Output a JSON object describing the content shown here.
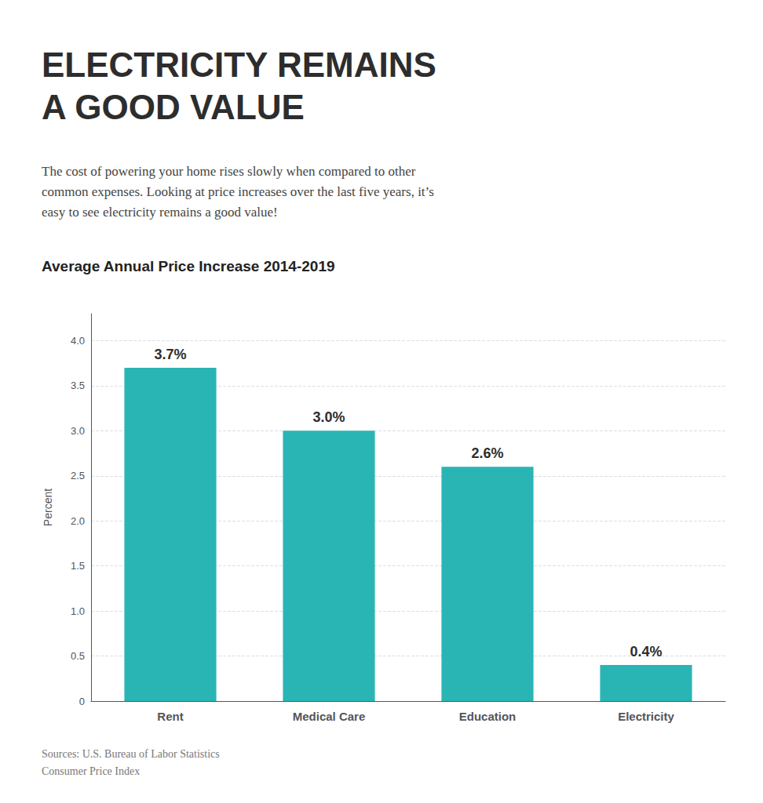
{
  "chart_data": {
    "type": "bar",
    "title": "ELECTRICITY REMAINS\nA GOOD VALUE",
    "subtitle": "The cost of powering your home rises slowly when compared to other\ncommon expenses. Looking at price increases over the last five years, it’s\neasy to see electricity remains a good value!",
    "annotations": [
      "Average Annual Price Increase 2014-2019",
      "Sources: U.S. Bureau of Labor Statistics\nConsumer Price Index"
    ],
    "ylabel": "Percent",
    "categories": [
      "Rent",
      "Medical Care",
      "Education",
      "Electricity"
    ],
    "values": [
      3.7,
      3.0,
      2.6,
      0.4
    ],
    "value_labels": [
      "3.7%",
      "3.0%",
      "2.6%",
      "0.4%"
    ],
    "data_labels": true,
    "color": "#2ab5b5",
    "ylim": [
      0,
      4.3
    ],
    "yticks": [
      0,
      0.5,
      {
        "value": 1.0,
        "label": "1.0"
      },
      1.5,
      {
        "value": 2.0,
        "label": "2.0"
      },
      2.5,
      {
        "value": 3.0,
        "label": "3.0"
      },
      3.5,
      {
        "value": 4.0,
        "label": "4.0"
      }
    ],
    "grid": true
  }
}
